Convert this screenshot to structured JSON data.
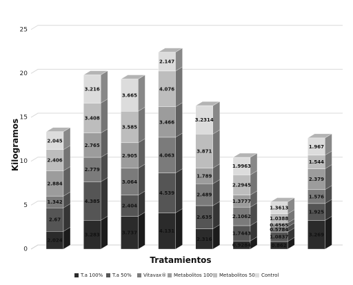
{
  "chart_data": {
    "type": "bar",
    "stacked": true,
    "three_d": true,
    "xlabel": "Tratamientos",
    "ylabel": "Kilogramos",
    "ylim": [
      0,
      25
    ],
    "yticks": [
      "0",
      "5",
      "10",
      "15",
      "20",
      "25"
    ],
    "grid": true,
    "legend_position": "bottom",
    "categories": [
      "",
      "",
      "",
      "",
      "",
      "",
      "",
      ""
    ],
    "series": [
      {
        "name": "T.a 100%",
        "color": "#2b2b2b",
        "values": [
          2.024,
          3.283,
          3.737,
          4.131,
          2.316,
          0.9284,
          0.862,
          3.269
        ],
        "labels": [
          "2.024",
          "3.283",
          "3.737",
          "4.131",
          "2.316",
          "0.9284",
          "0.862",
          "3.269"
        ]
      },
      {
        "name": "T.a 50%",
        "color": "#555555",
        "values": [
          2.67,
          4.385,
          2.404,
          4.539,
          2.635,
          1.7443,
          1.0837,
          1.925
        ],
        "labels": [
          "2.67",
          "4.385",
          "2.404",
          "4.539",
          "2.635",
          "1.7443",
          "1.0837",
          "1.925"
        ]
      },
      {
        "name": "Vitavax®",
        "color": "#7b7b7b",
        "values": [
          1.342,
          2.779,
          3.064,
          4.063,
          2.489,
          2.1062,
          0.5784,
          1.576
        ],
        "labels": [
          "1.342",
          "2.779",
          "3.064",
          "4.063",
          "2.489",
          "2.1062",
          "0.5784",
          "1.576"
        ]
      },
      {
        "name": "Metabolitos 100%",
        "color": "#9c9c9c",
        "values": [
          2.884,
          2.765,
          2.905,
          3.466,
          1.789,
          1.3777,
          0.4565,
          2.379
        ],
        "labels": [
          "2.884",
          "2.765",
          "2.905",
          "3.466",
          "1.789",
          "1.3777",
          "0.4565",
          "2.379"
        ]
      },
      {
        "name": "Metabolitos 50%",
        "color": "#bdbdbd",
        "values": [
          2.406,
          3.408,
          3.585,
          4.076,
          3.871,
          2.2945,
          1.0388,
          1.544
        ],
        "labels": [
          "2.406",
          "3.408",
          "3.585",
          "4.076",
          "3.871",
          "2.2945",
          "1.0388",
          "1.544"
        ]
      },
      {
        "name": "Control",
        "color": "#dcdcdc",
        "values": [
          2.045,
          3.216,
          3.665,
          2.147,
          3.2314,
          1.9963,
          1.3613,
          1.967
        ],
        "labels": [
          "2.045",
          "3.216",
          "3.665",
          "2.147",
          "3.2314",
          "1.9963",
          "1.3613",
          "1.967"
        ]
      }
    ]
  }
}
